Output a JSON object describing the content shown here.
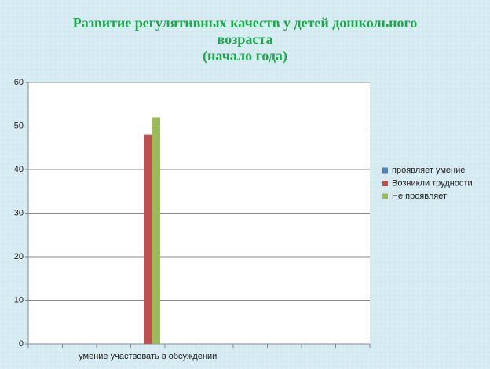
{
  "chart_data": {
    "type": "bar",
    "title": [
      "Развитие  регулятивных качеств у детей дошкольного",
      "возраста",
      "(начало года)"
    ],
    "categories": [
      null,
      null,
      null,
      "умение участвовать в обсуждении",
      null,
      null,
      null,
      null,
      null,
      null
    ],
    "series": [
      {
        "name": "проявляет умение",
        "color": "#4f81bd",
        "values": [
          null,
          null,
          null,
          0,
          null,
          null,
          null,
          null,
          null,
          null
        ]
      },
      {
        "name": "Возникли трудности",
        "color": "#c0504d",
        "values": [
          null,
          null,
          null,
          48,
          null,
          null,
          null,
          null,
          null,
          null
        ]
      },
      {
        "name": "Не проявляет",
        "color": "#9bbb59",
        "values": [
          null,
          null,
          null,
          52,
          null,
          null,
          null,
          null,
          null,
          null
        ]
      }
    ],
    "ylim": [
      0,
      60
    ],
    "yticks": [
      0,
      10,
      20,
      30,
      40,
      50,
      60
    ],
    "grid": true,
    "legend": "right"
  }
}
